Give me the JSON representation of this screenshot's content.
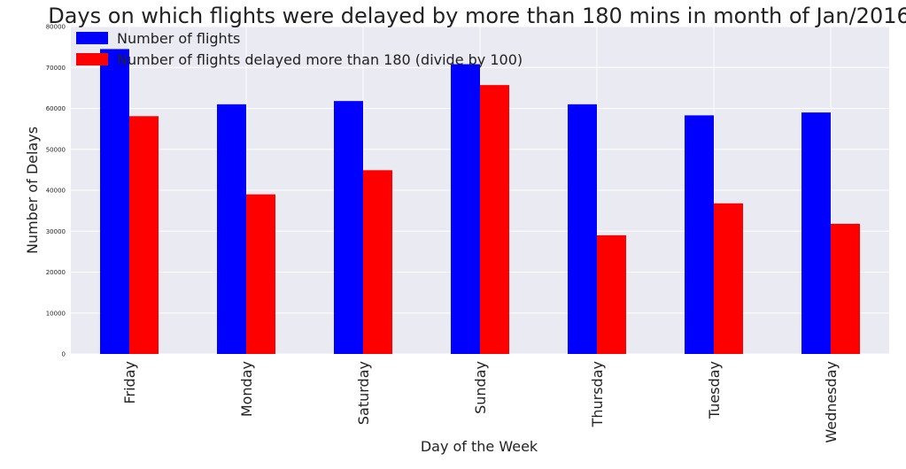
{
  "chart_data": {
    "type": "bar",
    "title": "Days on which flights were delayed by more than 180 mins in month of Jan/2016",
    "xlabel": "Day of the Week",
    "ylabel": "Number of Delays",
    "ylim": [
      0,
      80000
    ],
    "yticks": [
      0,
      10000,
      20000,
      30000,
      40000,
      50000,
      60000,
      70000,
      80000
    ],
    "grid": true,
    "legend_position": "top-left",
    "categories": [
      "Friday",
      "Monday",
      "Saturday",
      "Sunday",
      "Thursday",
      "Tuesday",
      "Wednesday"
    ],
    "series": [
      {
        "name": "Number of flights",
        "color": "#0000ff",
        "values": [
          74500,
          61000,
          61800,
          70800,
          61000,
          58300,
          59000
        ]
      },
      {
        "name": "Number of flights delayed more than 180 (divide by 100)",
        "color": "#ff0000",
        "values": [
          58100,
          39000,
          44900,
          65700,
          29000,
          36800,
          31800
        ]
      }
    ]
  },
  "colors": {
    "plot_background": "#eaeaf2",
    "grid": "#ffffff"
  }
}
